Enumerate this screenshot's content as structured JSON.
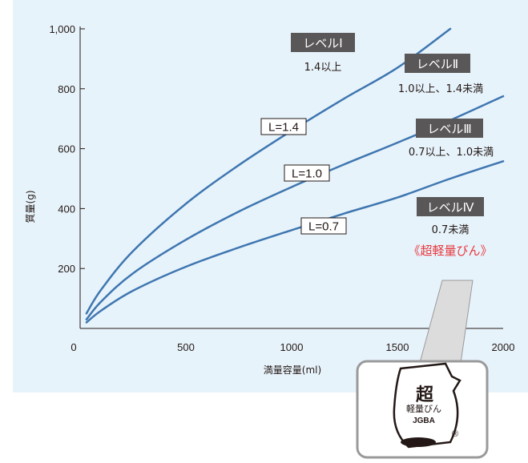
{
  "chart_data": {
    "type": "line",
    "xlabel": "満量容量(ml)",
    "ylabel": "質量(g)",
    "xlim": [
      0,
      2000
    ],
    "ylim": [
      0,
      1000
    ],
    "x_ticks": [
      "0",
      "500",
      "1000",
      "1500",
      "2000"
    ],
    "y_ticks": [
      "200",
      "400",
      "600",
      "800",
      "1,000"
    ],
    "grid": false,
    "series": [
      {
        "name": "L=1.4",
        "x": [
          30,
          100,
          250,
          500,
          750,
          1000,
          1250,
          1500,
          1750
        ],
        "y": [
          50,
          130,
          258,
          416,
          545,
          660,
          768,
          870,
          1000
        ]
      },
      {
        "name": "L=1.0",
        "x": [
          30,
          100,
          250,
          500,
          750,
          1000,
          1250,
          1500,
          1750,
          2000
        ],
        "y": [
          30,
          90,
          184,
          296,
          390,
          472,
          548,
          620,
          695,
          775
        ]
      },
      {
        "name": "L=0.7",
        "x": [
          30,
          100,
          250,
          500,
          750,
          1000,
          1250,
          1500,
          1750,
          2000
        ],
        "y": [
          20,
          60,
          126,
          206,
          270,
          328,
          384,
          437,
          500,
          558
        ]
      }
    ],
    "levels": [
      {
        "badge": "レベルⅠ",
        "desc": "1.4以上"
      },
      {
        "badge": "レベルⅡ",
        "desc": "1.0以上、1.4未満"
      },
      {
        "badge": "レベルⅢ",
        "desc": "0.7以上、1.0未満"
      },
      {
        "badge": "レベルⅣ",
        "desc": "0.7未満",
        "note": "《超軽量びん》"
      }
    ],
    "logo": {
      "line1": "超",
      "line2": "軽量びん",
      "line3": "JGBA",
      "mark": "®"
    },
    "colors": {
      "series": "#3e76b0",
      "panel": "#e7f3fb",
      "badge": "#595757",
      "note": "#e8383d"
    }
  }
}
